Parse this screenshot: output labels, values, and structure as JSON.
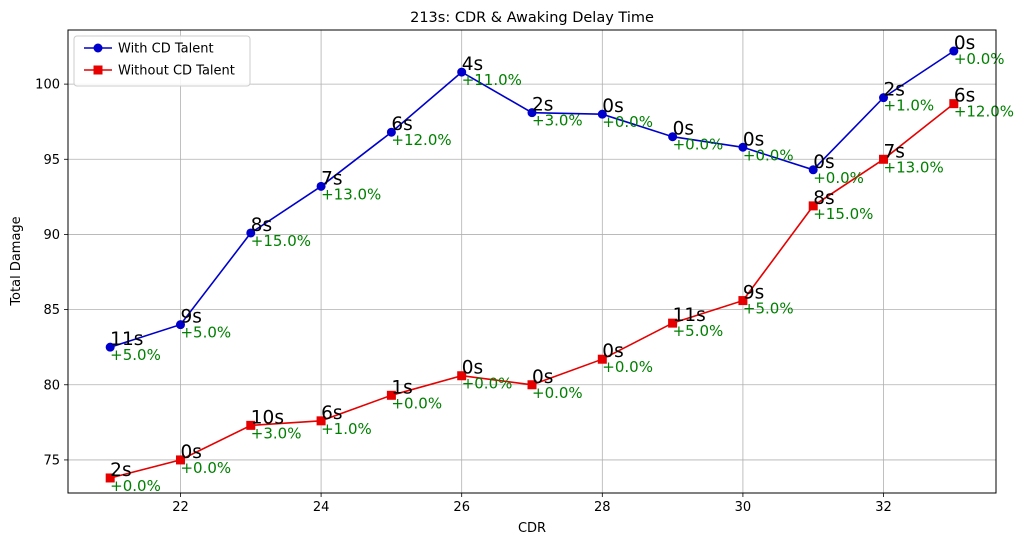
{
  "chart_data": {
    "type": "line",
    "title": "213s: CDR & Awaking Delay Time",
    "xlabel": "CDR",
    "ylabel": "Total Damage",
    "xlim": [
      20.4,
      33.6
    ],
    "ylim": [
      72.8,
      103.6
    ],
    "xticks": [
      22,
      24,
      26,
      28,
      30,
      32
    ],
    "yticks": [
      75,
      80,
      85,
      90,
      95,
      100
    ],
    "grid": true,
    "legend_position": "top-left",
    "x": [
      21,
      22,
      23,
      24,
      25,
      26,
      27,
      28,
      29,
      30,
      31,
      32,
      33
    ],
    "series": [
      {
        "name": "With CD Talent",
        "color": "#0000cc",
        "marker": "circle",
        "values": [
          82.5,
          84.0,
          90.1,
          93.2,
          96.8,
          100.8,
          98.1,
          98.0,
          96.5,
          95.8,
          94.3,
          99.1,
          102.2
        ],
        "delay_labels": [
          "11s",
          "9s",
          "8s",
          "7s",
          "6s",
          "4s",
          "2s",
          "0s",
          "0s",
          "0s",
          "0s",
          "2s",
          "0s"
        ],
        "pct_labels": [
          "+5.0%",
          "+5.0%",
          "+15.0%",
          "+13.0%",
          "+12.0%",
          "+11.0%",
          "+3.0%",
          "+0.0%",
          "+0.0%",
          "+0.0%",
          "+0.0%",
          "+1.0%",
          "+0.0%"
        ]
      },
      {
        "name": "Without CD Talent",
        "color": "#e60000",
        "marker": "square",
        "values": [
          73.8,
          75.0,
          77.3,
          77.6,
          79.3,
          80.6,
          80.0,
          81.7,
          84.1,
          85.6,
          91.9,
          95.0,
          98.7
        ],
        "delay_labels": [
          "2s",
          "0s",
          "10s",
          "6s",
          "1s",
          "0s",
          "0s",
          "0s",
          "11s",
          "9s",
          "8s",
          "7s",
          "6s"
        ],
        "pct_labels": [
          "+0.0%",
          "+0.0%",
          "+3.0%",
          "+1.0%",
          "+0.0%",
          "+0.0%",
          "+0.0%",
          "+0.0%",
          "+5.0%",
          "+5.0%",
          "+15.0%",
          "+13.0%",
          "+12.0%"
        ]
      }
    ]
  }
}
